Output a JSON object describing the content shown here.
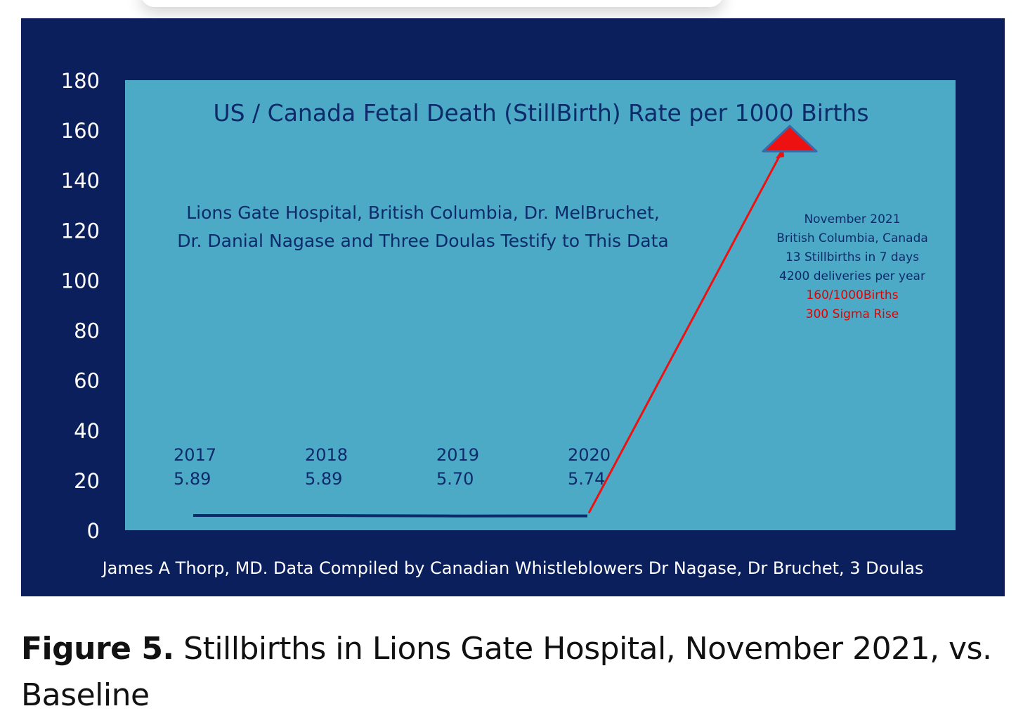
{
  "colors": {
    "outer_background": "#0a1f5c",
    "plot_background": "#4daac6",
    "title_text": "#0d2a6b",
    "series_line": "#0d2a6b",
    "arrow": "#ee1111",
    "highlight_text": "#e30000",
    "axis_text": "#ffffff"
  },
  "chart_data": {
    "type": "line",
    "title": "US / Canada Fetal Death (StillBirth) Rate per 1000 Births",
    "subtitle_lines": [
      "Lions Gate Hospital, British Columbia, Dr. MelBruchet,",
      "Dr. Danial Nagase and Three Doulas Testify to This Data"
    ],
    "ylim": [
      0,
      180
    ],
    "yticks": [
      "0",
      "20",
      "40",
      "60",
      "80",
      "100",
      "120",
      "140",
      "160",
      "180"
    ],
    "grid": false,
    "series": [
      {
        "x": [
          "2017",
          "2018",
          "2019",
          "2020"
        ],
        "values": [
          5.89,
          5.89,
          5.7,
          5.74
        ],
        "labels": [
          "5.89",
          "5.89",
          "5.70",
          "5.74"
        ]
      }
    ],
    "arrow_to_value": 160,
    "annotation_lines": [
      "November 2021",
      "British Columbia, Canada",
      "13 Stillbirths in 7 days",
      "4200 deliveries per year"
    ],
    "annotation_highlight_lines": [
      "160/1000Births",
      "300 Sigma Rise"
    ],
    "footer": "James A Thorp, MD. Data Compiled by Canadian Whistleblowers Dr Nagase, Dr Bruchet, 3 Doulas"
  },
  "figure_caption": {
    "label": "Figure 5.",
    "text": " Stillbirths in Lions Gate Hospital, November 2021, vs. Baseline"
  }
}
